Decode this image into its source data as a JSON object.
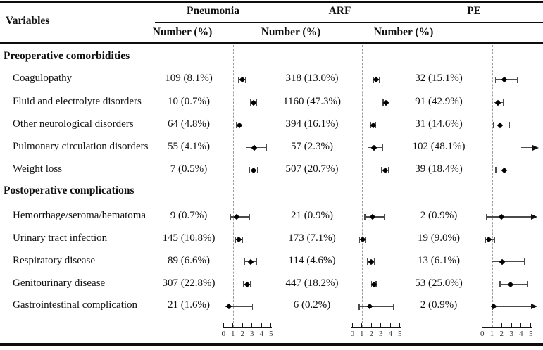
{
  "chart_data": {
    "type": "table",
    "subtype": "forest-plot-table",
    "variables_label": "Variables",
    "groups": [
      {
        "label": "Pneumonia",
        "subheader": "Number (%)"
      },
      {
        "label": "ARF",
        "subheader": "Number (%)"
      },
      {
        "label": "PE",
        "subheader": "Number (%)"
      }
    ],
    "axis": {
      "range": [
        0,
        5
      ],
      "ticks": [
        "0",
        "1",
        "2",
        "3",
        "4",
        "5"
      ],
      "reference_line": 1,
      "scale": "linear"
    },
    "sections": [
      {
        "title": "Preoperative comorbidities",
        "rows": [
          {
            "label": "Coagulopathy",
            "cells": [
              {
                "number": "109 (8.1%)",
                "or": 1.95,
                "lo": 1.6,
                "hi": 2.35
              },
              {
                "number": "318 (13.0%)",
                "or": 2.5,
                "lo": 2.2,
                "hi": 2.85
              },
              {
                "number": "32 (15.1%)",
                "or": 2.3,
                "lo": 1.35,
                "hi": 3.6
              }
            ]
          },
          {
            "label": "Fluid and electrolyte disorders",
            "cells": [
              {
                "number": "10 (0.7%)",
                "or": 3.15,
                "lo": 2.85,
                "hi": 3.5
              },
              {
                "number": "1160 (47.3%)",
                "or": 3.55,
                "lo": 3.25,
                "hi": 3.85
              },
              {
                "number": "91 (42.9%)",
                "or": 1.65,
                "lo": 1.2,
                "hi": 2.2
              }
            ]
          },
          {
            "label": "Other neurological disorders",
            "cells": [
              {
                "number": "64 (4.8%)",
                "or": 1.65,
                "lo": 1.35,
                "hi": 1.95
              },
              {
                "number": "394 (16.1%)",
                "or": 2.2,
                "lo": 1.9,
                "hi": 2.45
              },
              {
                "number": "31 (14.6%)",
                "or": 1.8,
                "lo": 1.15,
                "hi": 2.8
              }
            ]
          },
          {
            "label": "Pulmonary circulation disorders",
            "cells": [
              {
                "number": "55 (4.1%)",
                "or": 3.25,
                "lo": 2.4,
                "hi": 4.5
              },
              {
                "number": "57 (2.3%)",
                "or": 2.3,
                "lo": 1.65,
                "hi": 3.2
              },
              {
                "number": "102 (48.1%)",
                "offscale_right": true
              }
            ]
          },
          {
            "label": "Weight loss",
            "cells": [
              {
                "number": "7 (0.5%)",
                "or": 3.15,
                "lo": 2.75,
                "hi": 3.6
              },
              {
                "number": "507 (20.7%)",
                "or": 3.45,
                "lo": 3.05,
                "hi": 3.8
              },
              {
                "number": "39 (18.4%)",
                "or": 2.3,
                "lo": 1.4,
                "hi": 3.45
              }
            ]
          }
        ]
      },
      {
        "title": "Postoperative complications",
        "rows": [
          {
            "label": "Hemorrhage/seroma/hematoma",
            "cells": [
              {
                "number": "9 (0.7%)",
                "or": 1.4,
                "lo": 0.75,
                "hi": 2.7
              },
              {
                "number": "21 (0.9%)",
                "or": 2.15,
                "lo": 1.3,
                "hi": 3.4
              },
              {
                "number": "2 (0.9%)",
                "or": 2.0,
                "lo": 0.45,
                "hi": 5,
                "hi_arrow": true
              }
            ]
          },
          {
            "label": "Urinary tract infection",
            "cells": [
              {
                "number": "145 (10.8%)",
                "or": 1.6,
                "lo": 1.25,
                "hi": 2.0
              },
              {
                "number": "173 (7.1%)",
                "or": 1.1,
                "lo": 0.75,
                "hi": 1.4
              },
              {
                "number": "19 (9.0%)",
                "or": 0.67,
                "lo": 0.33,
                "hi": 1.25
              }
            ]
          },
          {
            "label": "Respiratory disease",
            "cells": [
              {
                "number": "89 (6.6%)",
                "or": 2.85,
                "lo": 2.25,
                "hi": 3.5
              },
              {
                "number": "114 (4.6%)",
                "or": 1.95,
                "lo": 1.6,
                "hi": 2.35
              },
              {
                "number": "13 (6.1%)",
                "or": 2.05,
                "lo": 1.0,
                "hi": 4.35
              }
            ]
          },
          {
            "label": "Genitourinary disease",
            "cells": [
              {
                "number": "307 (22.8%)",
                "or": 2.5,
                "lo": 2.1,
                "hi": 2.85
              },
              {
                "number": "447 (18.2%)",
                "or": 2.25,
                "lo": 2.0,
                "hi": 2.5
              },
              {
                "number": "53 (25.0%)",
                "or": 2.9,
                "lo": 1.85,
                "hi": 4.65
              }
            ]
          },
          {
            "label": "Gastrointestinal complication",
            "cells": [
              {
                "number": "21 (1.6%)",
                "or": 0.55,
                "lo": 0.15,
                "hi": 3.05
              },
              {
                "number": "6 (0.2%)",
                "or": 1.8,
                "lo": 0.7,
                "hi": 4.35
              },
              {
                "number": "2 (0.9%)",
                "or": 1.2,
                "lo": 1.02,
                "hi": 5,
                "hi_arrow": true
              }
            ]
          }
        ]
      }
    ]
  }
}
